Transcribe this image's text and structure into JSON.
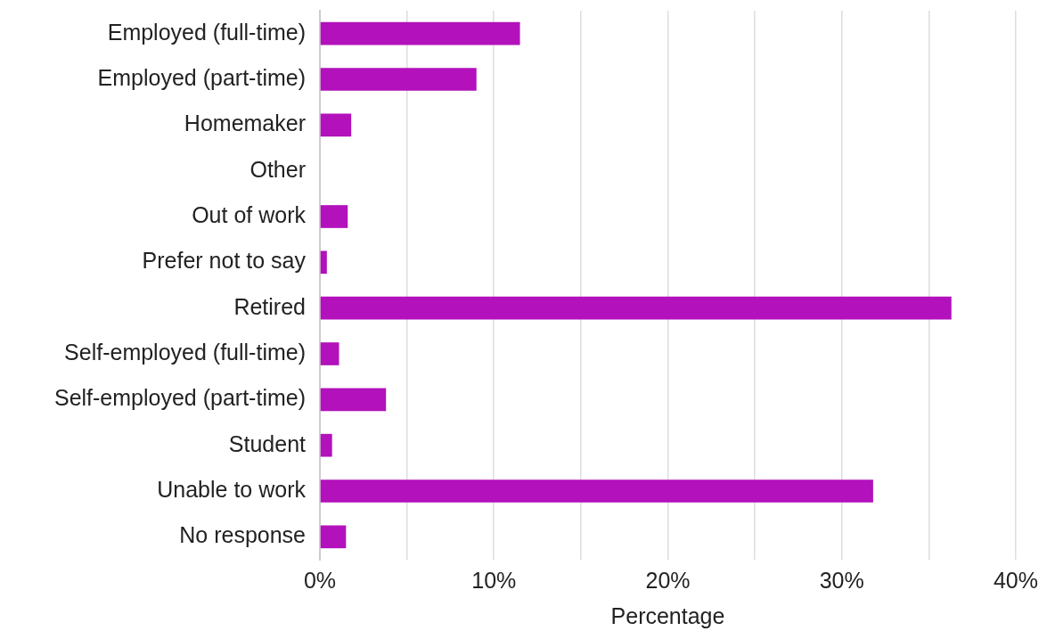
{
  "chart_data": {
    "type": "bar",
    "orientation": "horizontal",
    "categories": [
      "Employed (full-time)",
      "Employed (part-time)",
      "Homemaker",
      "Other",
      "Out of work",
      "Prefer not to say",
      "Retired",
      "Self-employed (full-time)",
      "Self-employed (part-time)",
      "Student",
      "Unable to work",
      "No response"
    ],
    "values": [
      11.5,
      9.0,
      1.8,
      0,
      1.6,
      0.4,
      36.3,
      1.1,
      3.8,
      0.7,
      31.8,
      1.5
    ],
    "color": "#b211bb",
    "xlabel": "Percentage",
    "xlim": [
      0,
      40
    ],
    "xticks": [
      {
        "value": 0,
        "label": "0%"
      },
      {
        "value": 5,
        "label": null
      },
      {
        "value": 10,
        "label": "10%"
      },
      {
        "value": 15,
        "label": null
      },
      {
        "value": 20,
        "label": "20%"
      },
      {
        "value": 25,
        "label": null
      },
      {
        "value": 30,
        "label": "30%"
      },
      {
        "value": 35,
        "label": null
      },
      {
        "value": 40,
        "label": "40%"
      }
    ],
    "grid": "x"
  }
}
